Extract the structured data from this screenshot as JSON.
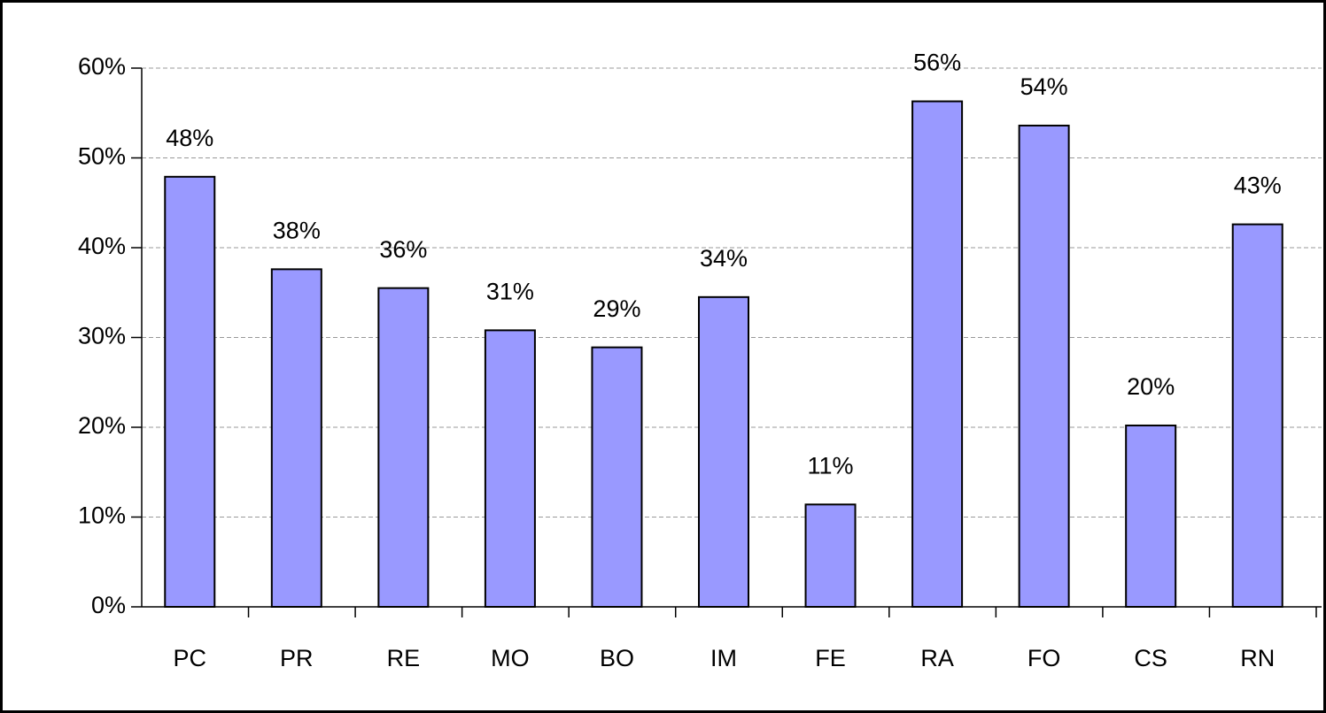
{
  "chart_data": {
    "type": "bar",
    "categories": [
      "PC",
      "PR",
      "RE",
      "MO",
      "BO",
      "IM",
      "FE",
      "RA",
      "FO",
      "CS",
      "RN"
    ],
    "values": [
      47.9,
      37.6,
      35.5,
      30.8,
      28.9,
      34.5,
      11.4,
      56.3,
      53.6,
      20.2,
      42.6
    ],
    "value_labels": [
      "48%",
      "38%",
      "36%",
      "31%",
      "29%",
      "34%",
      "11%",
      "56%",
      "54%",
      "20%",
      "43%"
    ],
    "color": "#9999ff",
    "ylim": [
      0,
      60
    ],
    "yticks": [
      {
        "value": 0,
        "label": "0%"
      },
      {
        "value": 10,
        "label": "10%"
      },
      {
        "value": 20,
        "label": "20%"
      },
      {
        "value": 30,
        "label": "30%"
      },
      {
        "value": 40,
        "label": "40%"
      },
      {
        "value": 50,
        "label": "50%"
      },
      {
        "value": 60,
        "label": "60%"
      }
    ],
    "grid": true
  }
}
